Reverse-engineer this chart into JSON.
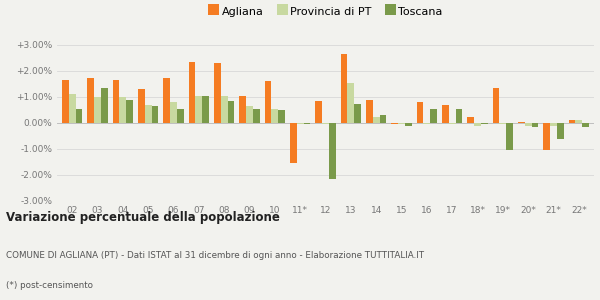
{
  "categories": [
    "02",
    "03",
    "04",
    "05",
    "06",
    "07",
    "08",
    "09",
    "10",
    "11*",
    "12",
    "13",
    "14",
    "15",
    "16",
    "17",
    "18*",
    "19*",
    "20*",
    "21*",
    "22*"
  ],
  "agliana": [
    1.65,
    1.75,
    1.65,
    1.3,
    1.75,
    2.35,
    2.3,
    1.05,
    1.6,
    -1.55,
    0.85,
    2.65,
    0.9,
    -0.05,
    0.8,
    0.7,
    0.25,
    1.35,
    0.05,
    -1.05,
    0.1
  ],
  "provincia_pt": [
    1.1,
    1.0,
    1.0,
    0.7,
    0.8,
    1.05,
    1.05,
    0.65,
    0.55,
    -0.05,
    -0.05,
    1.55,
    0.25,
    -0.05,
    -0.05,
    -0.05,
    -0.1,
    -0.05,
    -0.1,
    -0.1,
    0.1
  ],
  "toscana": [
    0.55,
    1.35,
    0.9,
    0.65,
    0.55,
    1.05,
    0.85,
    0.55,
    0.5,
    -0.05,
    -2.15,
    0.75,
    0.3,
    -0.1,
    0.55,
    0.55,
    -0.05,
    -1.05,
    -0.15,
    -0.6,
    -0.15
  ],
  "color_agliana": "#f57c22",
  "color_provincia": "#c8d9a0",
  "color_toscana": "#7a9a4a",
  "legend_labels": [
    "Agliana",
    "Provincia di PT",
    "Toscana"
  ],
  "title_bold": "Variazione percentuale della popolazione",
  "subtitle": "COMUNE DI AGLIANA (PT) - Dati ISTAT al 31 dicembre di ogni anno - Elaborazione TUTTITALIA.IT",
  "footnote": "(*) post-censimento",
  "ylim": [
    -3.0,
    3.0
  ],
  "yticks": [
    -3.0,
    -2.0,
    -1.0,
    0.0,
    1.0,
    2.0,
    3.0
  ],
  "ytick_labels": [
    "-3.00%",
    "-2.00%",
    "-1.00%",
    "0.00%",
    "+1.00%",
    "+2.00%",
    "+3.00%"
  ],
  "background_color": "#f2f2ee",
  "grid_color": "#d8d8d8",
  "bar_width": 0.27
}
